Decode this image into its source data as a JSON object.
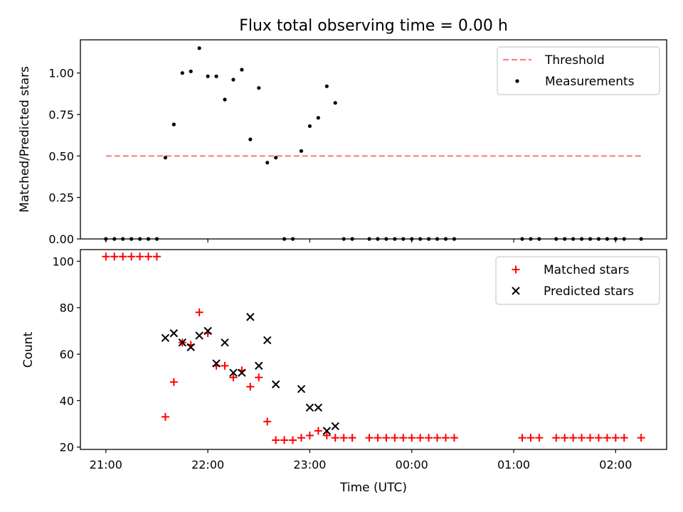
{
  "chart_data": [
    {
      "type": "scatter",
      "title": "Flux total observing time = 0.00 h",
      "xlabel": "",
      "ylabel": "Matched/Predicted stars",
      "xlim": [
        "20:45",
        "02:30"
      ],
      "ylim": [
        0,
        1.2
      ],
      "x_ticks": [
        "21:00",
        "22:00",
        "23:00",
        "00:00",
        "01:00",
        "02:00"
      ],
      "x_tick_labels_visible": false,
      "y_ticks": [
        "0.00",
        "0.25",
        "0.50",
        "0.75",
        "1.00"
      ],
      "legend_position": "top-right",
      "series": [
        {
          "name": "Threshold",
          "style": "dashed-line",
          "color": "#ff7f7f",
          "points": [
            [
              "21:00",
              0.5
            ],
            [
              "02:15",
              0.5
            ]
          ]
        },
        {
          "name": "Measurements",
          "style": "dot",
          "color": "#000000",
          "points": [
            [
              "21:00",
              0
            ],
            [
              "21:05",
              0
            ],
            [
              "21:10",
              0
            ],
            [
              "21:15",
              0
            ],
            [
              "21:20",
              0
            ],
            [
              "21:25",
              0
            ],
            [
              "21:30",
              0
            ],
            [
              "21:35",
              0.49
            ],
            [
              "21:40",
              0.69
            ],
            [
              "21:45",
              1.0
            ],
            [
              "21:50",
              1.01
            ],
            [
              "21:55",
              1.15
            ],
            [
              "22:00",
              0.98
            ],
            [
              "22:05",
              0.98
            ],
            [
              "22:10",
              0.84
            ],
            [
              "22:15",
              0.96
            ],
            [
              "22:20",
              1.02
            ],
            [
              "22:25",
              0.6
            ],
            [
              "22:30",
              0.91
            ],
            [
              "22:35",
              0.46
            ],
            [
              "22:40",
              0.49
            ],
            [
              "22:45",
              0
            ],
            [
              "22:50",
              0
            ],
            [
              "22:55",
              0.53
            ],
            [
              "23:00",
              0.68
            ],
            [
              "23:05",
              0.73
            ],
            [
              "23:10",
              0.92
            ],
            [
              "23:15",
              0.82
            ],
            [
              "23:20",
              0
            ],
            [
              "23:25",
              0
            ],
            [
              "23:35",
              0
            ],
            [
              "23:40",
              0
            ],
            [
              "23:45",
              0
            ],
            [
              "23:50",
              0
            ],
            [
              "23:55",
              0
            ],
            [
              "00:00",
              0
            ],
            [
              "00:05",
              0
            ],
            [
              "00:10",
              0
            ],
            [
              "00:15",
              0
            ],
            [
              "00:20",
              0
            ],
            [
              "00:25",
              0
            ],
            [
              "01:05",
              0
            ],
            [
              "01:10",
              0
            ],
            [
              "01:15",
              0
            ],
            [
              "01:25",
              0
            ],
            [
              "01:30",
              0
            ],
            [
              "01:35",
              0
            ],
            [
              "01:40",
              0
            ],
            [
              "01:45",
              0
            ],
            [
              "01:50",
              0
            ],
            [
              "01:55",
              0
            ],
            [
              "02:00",
              0
            ],
            [
              "02:05",
              0
            ],
            [
              "02:15",
              0
            ]
          ]
        }
      ]
    },
    {
      "type": "scatter",
      "title": "",
      "xlabel": "Time (UTC)",
      "ylabel": "Count",
      "xlim": [
        "20:45",
        "02:30"
      ],
      "ylim": [
        19,
        105
      ],
      "x_ticks": [
        "21:00",
        "22:00",
        "23:00",
        "00:00",
        "01:00",
        "02:00"
      ],
      "y_ticks": [
        "20",
        "40",
        "60",
        "80",
        "100"
      ],
      "legend_position": "top-right",
      "series": [
        {
          "name": "Matched stars",
          "style": "plus",
          "color": "#ff0000",
          "points": [
            [
              "21:00",
              102
            ],
            [
              "21:05",
              102
            ],
            [
              "21:10",
              102
            ],
            [
              "21:15",
              102
            ],
            [
              "21:20",
              102
            ],
            [
              "21:25",
              102
            ],
            [
              "21:30",
              102
            ],
            [
              "21:35",
              33
            ],
            [
              "21:40",
              48
            ],
            [
              "21:45",
              65
            ],
            [
              "21:50",
              64
            ],
            [
              "21:55",
              78
            ],
            [
              "22:00",
              69
            ],
            [
              "22:05",
              55
            ],
            [
              "22:10",
              55
            ],
            [
              "22:15",
              50
            ],
            [
              "22:20",
              53
            ],
            [
              "22:25",
              46
            ],
            [
              "22:30",
              50
            ],
            [
              "22:35",
              31
            ],
            [
              "22:40",
              23
            ],
            [
              "22:45",
              23
            ],
            [
              "22:50",
              23
            ],
            [
              "22:55",
              24
            ],
            [
              "23:00",
              25
            ],
            [
              "23:05",
              27
            ],
            [
              "23:10",
              25
            ],
            [
              "23:15",
              24
            ],
            [
              "23:20",
              24
            ],
            [
              "23:25",
              24
            ],
            [
              "23:35",
              24
            ],
            [
              "23:40",
              24
            ],
            [
              "23:45",
              24
            ],
            [
              "23:50",
              24
            ],
            [
              "23:55",
              24
            ],
            [
              "00:00",
              24
            ],
            [
              "00:05",
              24
            ],
            [
              "00:10",
              24
            ],
            [
              "00:15",
              24
            ],
            [
              "00:20",
              24
            ],
            [
              "00:25",
              24
            ],
            [
              "01:05",
              24
            ],
            [
              "01:10",
              24
            ],
            [
              "01:15",
              24
            ],
            [
              "01:25",
              24
            ],
            [
              "01:30",
              24
            ],
            [
              "01:35",
              24
            ],
            [
              "01:40",
              24
            ],
            [
              "01:45",
              24
            ],
            [
              "01:50",
              24
            ],
            [
              "01:55",
              24
            ],
            [
              "02:00",
              24
            ],
            [
              "02:05",
              24
            ],
            [
              "02:15",
              24
            ]
          ]
        },
        {
          "name": "Predicted stars",
          "style": "x",
          "color": "#000000",
          "points": [
            [
              "21:35",
              67
            ],
            [
              "21:40",
              69
            ],
            [
              "21:45",
              65
            ],
            [
              "21:50",
              63
            ],
            [
              "21:55",
              68
            ],
            [
              "22:00",
              70
            ],
            [
              "22:05",
              56
            ],
            [
              "22:10",
              65
            ],
            [
              "22:15",
              52
            ],
            [
              "22:20",
              52
            ],
            [
              "22:25",
              76
            ],
            [
              "22:30",
              55
            ],
            [
              "22:35",
              66
            ],
            [
              "22:40",
              47
            ],
            [
              "22:55",
              45
            ],
            [
              "23:00",
              37
            ],
            [
              "23:05",
              37
            ],
            [
              "23:10",
              27
            ],
            [
              "23:15",
              29
            ]
          ]
        }
      ]
    }
  ]
}
